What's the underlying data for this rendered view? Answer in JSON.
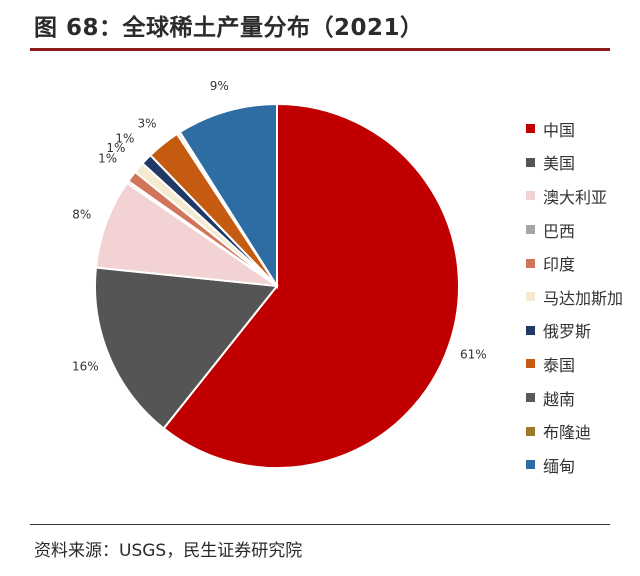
{
  "title": "图 68：全球稀土产量分布（2021）",
  "source": "资料来源：USGS，民生证券研究院",
  "chart_data": {
    "type": "pie",
    "title": "图 68：全球稀土产量分布（2021）",
    "legend_position": "right",
    "slices": [
      {
        "name": "中国",
        "value": 61,
        "label": "61%",
        "color": "#c00000"
      },
      {
        "name": "美国",
        "value": 16,
        "label": "16%",
        "color": "#555555"
      },
      {
        "name": "澳大利亚",
        "value": 8,
        "label": "8%",
        "color": "#f2d2d2"
      },
      {
        "name": "巴西",
        "value": 0.2,
        "label": "",
        "color": "#a6a6a6"
      },
      {
        "name": "印度",
        "value": 1,
        "label": "1%",
        "color": "#d0745a"
      },
      {
        "name": "马达加斯加",
        "value": 1,
        "label": "1%",
        "color": "#f4ead0"
      },
      {
        "name": "俄罗斯",
        "value": 1,
        "label": "1%",
        "color": "#1f3864"
      },
      {
        "name": "泰国",
        "value": 3,
        "label": "3%",
        "color": "#c55a11"
      },
      {
        "name": "越南",
        "value": 0.2,
        "label": "",
        "color": "#595959"
      },
      {
        "name": "布隆迪",
        "value": 0.1,
        "label": "",
        "color": "#9c7a2a"
      },
      {
        "name": "缅甸",
        "value": 9,
        "label": "9%",
        "color": "#2e6ca4"
      }
    ]
  }
}
